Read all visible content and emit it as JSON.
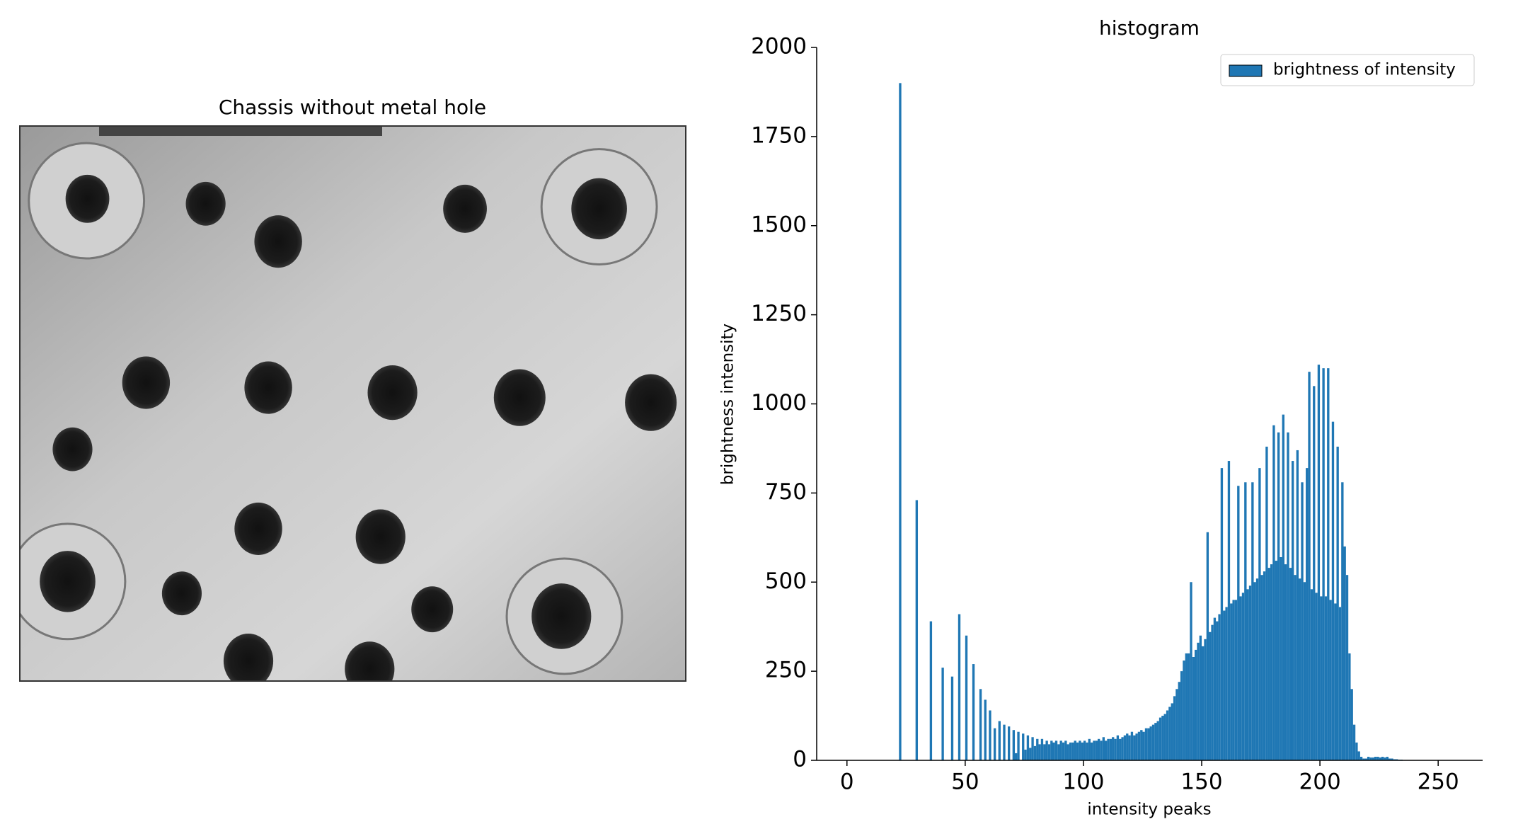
{
  "image_title": "Chassis without metal hole",
  "chart_data": {
    "type": "histogram",
    "title": "histogram",
    "x_label": "intensity peaks",
    "y_label": "brightness intensity",
    "series_name": "brightness of intensity",
    "color": "#1f77b4",
    "legend": "upper right",
    "xlim": [
      -12.8,
      268.8
    ],
    "ylim": [
      0,
      2000
    ],
    "xticks": [
      0,
      50,
      100,
      150,
      200,
      250
    ],
    "yticks": [
      0,
      250,
      500,
      750,
      1000,
      1250,
      1500,
      1750,
      2000
    ],
    "bins": [
      0,
      1,
      2,
      3,
      4,
      5,
      6,
      7,
      8,
      9,
      10,
      11,
      12,
      13,
      14,
      15,
      16,
      17,
      18,
      19,
      20,
      21,
      22,
      23,
      24,
      25,
      26,
      27,
      28,
      29,
      30,
      31,
      32,
      33,
      34,
      35,
      36,
      37,
      38,
      39,
      40,
      41,
      42,
      43,
      44,
      45,
      46,
      47,
      48,
      49,
      50,
      51,
      52,
      53,
      54,
      55,
      56,
      57,
      58,
      59,
      60,
      61,
      62,
      63,
      64,
      65,
      66,
      67,
      68,
      69,
      70,
      71,
      72,
      73,
      74,
      75,
      76,
      77,
      78,
      79,
      80,
      81,
      82,
      83,
      84,
      85,
      86,
      87,
      88,
      89,
      90,
      91,
      92,
      93,
      94,
      95,
      96,
      97,
      98,
      99,
      100,
      101,
      102,
      103,
      104,
      105,
      106,
      107,
      108,
      109,
      110,
      111,
      112,
      113,
      114,
      115,
      116,
      117,
      118,
      119,
      120,
      121,
      122,
      123,
      124,
      125,
      126,
      127,
      128,
      129,
      130,
      131,
      132,
      133,
      134,
      135,
      136,
      137,
      138,
      139,
      140,
      141,
      142,
      143,
      144,
      145,
      146,
      147,
      148,
      149,
      150,
      151,
      152,
      153,
      154,
      155,
      156,
      157,
      158,
      159,
      160,
      161,
      162,
      163,
      164,
      165,
      166,
      167,
      168,
      169,
      170,
      171,
      172,
      173,
      174,
      175,
      176,
      177,
      178,
      179,
      180,
      181,
      182,
      183,
      184,
      185,
      186,
      187,
      188,
      189,
      190,
      191,
      192,
      193,
      194,
      195,
      196,
      197,
      198,
      199,
      200,
      201,
      202,
      203,
      204,
      205,
      206,
      207,
      208,
      209,
      210,
      211,
      212,
      213,
      214,
      215,
      216,
      217,
      218,
      219,
      220,
      221,
      222,
      223,
      224,
      225,
      226,
      227,
      228,
      229,
      230,
      231,
      232,
      233,
      234,
      235,
      236,
      237,
      238,
      239,
      240,
      241,
      242,
      243,
      244,
      245,
      246,
      247,
      248,
      249,
      250,
      251,
      252,
      253,
      254,
      255,
      256
    ],
    "counts": [
      0,
      0,
      0,
      0,
      0,
      0,
      0,
      0,
      0,
      0,
      0,
      0,
      0,
      0,
      0,
      0,
      0,
      0,
      0,
      0,
      0,
      0,
      1900,
      0,
      0,
      0,
      0,
      0,
      0,
      730,
      0,
      0,
      0,
      0,
      0,
      390,
      0,
      0,
      0,
      0,
      260,
      0,
      0,
      0,
      235,
      0,
      0,
      410,
      0,
      0,
      350,
      0,
      0,
      270,
      0,
      0,
      200,
      0,
      170,
      0,
      140,
      0,
      90,
      0,
      110,
      0,
      100,
      0,
      95,
      0,
      85,
      20,
      80,
      0,
      75,
      30,
      70,
      35,
      65,
      40,
      60,
      45,
      60,
      45,
      55,
      45,
      55,
      50,
      55,
      45,
      55,
      50,
      55,
      45,
      50,
      50,
      55,
      50,
      55,
      50,
      55,
      50,
      60,
      50,
      55,
      55,
      60,
      55,
      65,
      55,
      60,
      60,
      65,
      60,
      70,
      60,
      65,
      70,
      75,
      70,
      80,
      70,
      75,
      80,
      85,
      80,
      90,
      90,
      95,
      100,
      105,
      110,
      120,
      125,
      130,
      140,
      150,
      160,
      180,
      200,
      220,
      250,
      280,
      300,
      300,
      500,
      290,
      310,
      330,
      350,
      320,
      340,
      640,
      360,
      380,
      400,
      390,
      410,
      820,
      420,
      430,
      840,
      440,
      450,
      450,
      770,
      460,
      470,
      780,
      480,
      490,
      780,
      500,
      510,
      820,
      520,
      530,
      880,
      540,
      550,
      940,
      560,
      920,
      570,
      970,
      550,
      920,
      540,
      840,
      520,
      870,
      510,
      780,
      500,
      820,
      1090,
      480,
      1050,
      470,
      1110,
      460,
      1100,
      460,
      1100,
      450,
      950,
      440,
      880,
      430,
      780,
      600,
      520,
      300,
      200,
      100,
      50,
      25,
      10,
      5,
      5,
      10,
      8,
      8,
      10,
      10,
      8,
      10,
      8,
      10,
      5,
      5,
      3,
      3,
      2,
      2,
      0,
      0,
      0,
      0,
      0,
      0,
      0,
      0,
      0,
      0,
      0,
      0,
      0,
      0,
      0,
      0,
      0,
      0,
      0,
      0,
      0
    ]
  }
}
